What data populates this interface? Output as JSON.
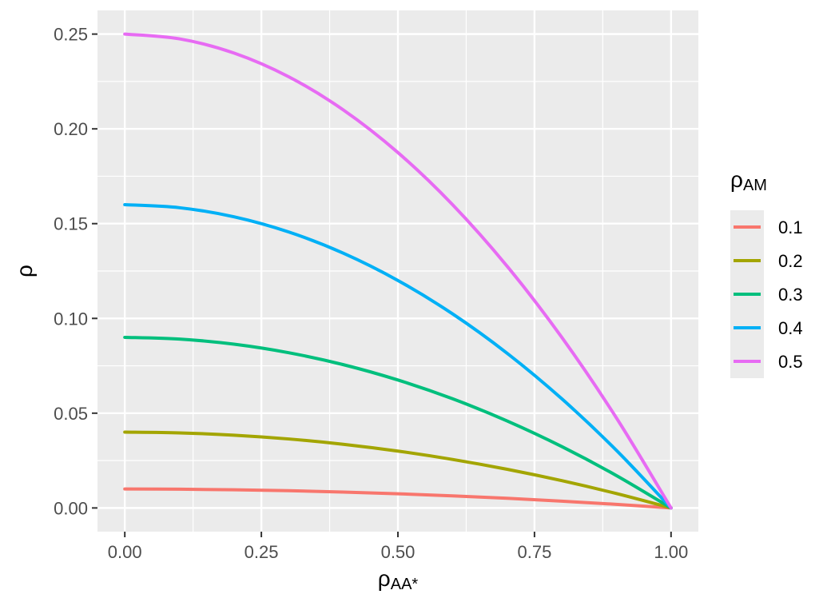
{
  "chart_data": {
    "type": "line",
    "title": "",
    "xlabel": {
      "main": "ρ",
      "sub": "AA*"
    },
    "ylabel": "ρ",
    "xlim": [
      -0.05,
      1.05
    ],
    "ylim": [
      -0.0125,
      0.2625
    ],
    "x_ticks": [
      0,
      0.25,
      0.5,
      0.75,
      1
    ],
    "x_tick_labels": [
      "0.00",
      "0.25",
      "0.50",
      "0.75",
      "1.00"
    ],
    "y_ticks": [
      0,
      0.05,
      0.1,
      0.15,
      0.2,
      0.25
    ],
    "y_tick_labels": [
      "0.00",
      "0.05",
      "0.10",
      "0.15",
      "0.20",
      "0.25"
    ],
    "grid": true,
    "legend": {
      "title": {
        "main": "ρ",
        "sub": "AM"
      },
      "position": "right"
    },
    "x": [
      0,
      0.1,
      0.2,
      0.3,
      0.4,
      0.5,
      0.6,
      0.7,
      0.8,
      0.9,
      1.0
    ],
    "series": [
      {
        "name": "0.1",
        "color": "#F8766D",
        "values": [
          0.01,
          0.0099,
          0.0096,
          0.0091,
          0.0084,
          0.0075,
          0.0064,
          0.0051,
          0.0036,
          0.0019,
          0
        ]
      },
      {
        "name": "0.2",
        "color": "#A3A500",
        "values": [
          0.04,
          0.0396,
          0.0384,
          0.0364,
          0.0336,
          0.03,
          0.0256,
          0.0204,
          0.0144,
          0.0076,
          0
        ]
      },
      {
        "name": "0.3",
        "color": "#00BF7D",
        "values": [
          0.09,
          0.0891,
          0.0864,
          0.0819,
          0.0756,
          0.0675,
          0.0576,
          0.0459,
          0.0324,
          0.0171,
          0
        ]
      },
      {
        "name": "0.4",
        "color": "#00B0F6",
        "values": [
          0.16,
          0.1584,
          0.1536,
          0.1456,
          0.1344,
          0.12,
          0.1024,
          0.0816,
          0.0576,
          0.0304,
          0
        ]
      },
      {
        "name": "0.5",
        "color": "#E76BF3",
        "values": [
          0.25,
          0.2475,
          0.24,
          0.2275,
          0.21,
          0.1875,
          0.16,
          0.1275,
          0.09,
          0.0475,
          0
        ]
      }
    ]
  }
}
